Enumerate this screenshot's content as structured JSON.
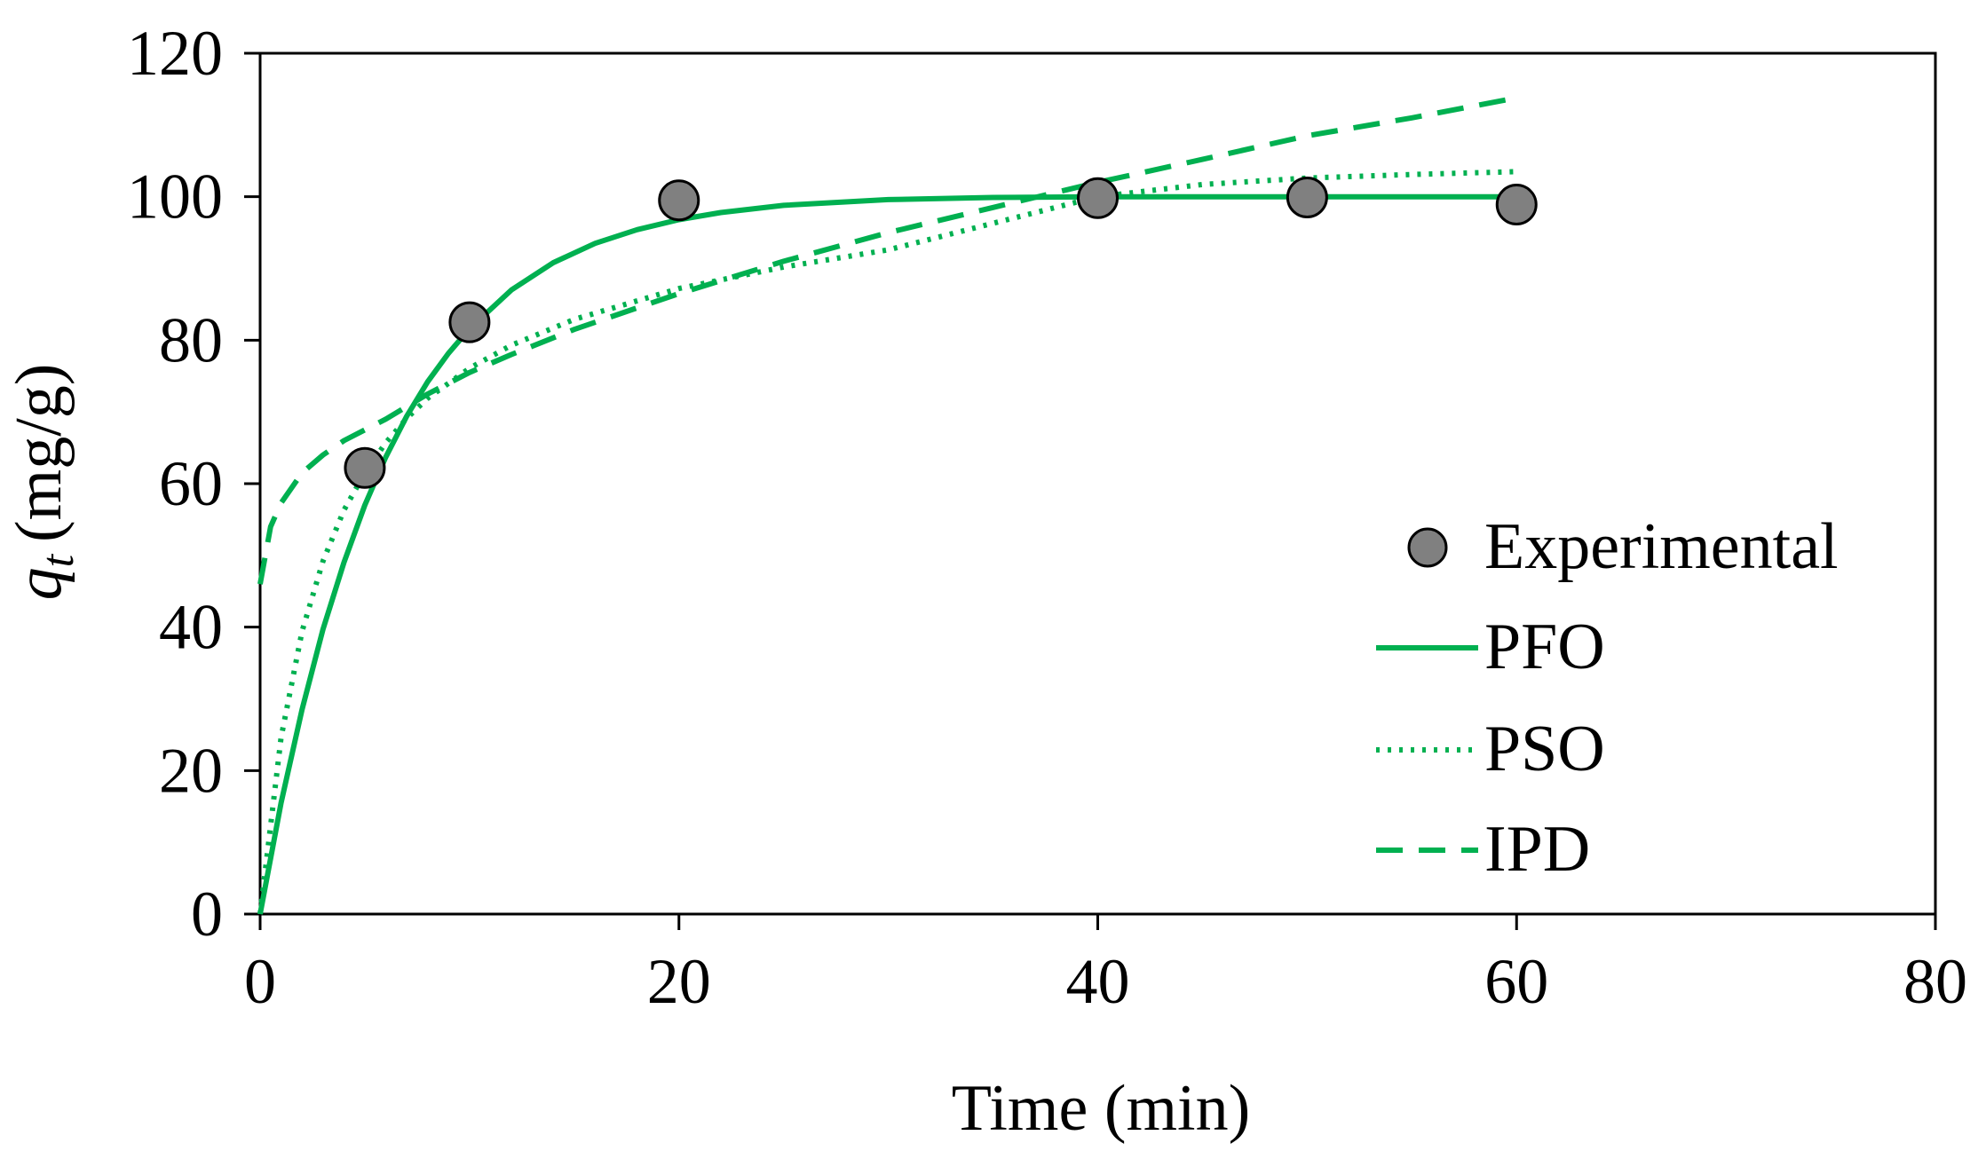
{
  "chart_data": {
    "type": "line",
    "title": "",
    "xlabel": "Time (min)",
    "ylabel": {
      "symbol": "q",
      "subscript": "t",
      "units": "(mg/g)"
    },
    "xlim": [
      0,
      80
    ],
    "ylim": [
      0,
      120
    ],
    "xticks": [
      0,
      20,
      40,
      60,
      80
    ],
    "yticks": [
      0,
      20,
      40,
      60,
      80,
      100,
      120
    ],
    "grid": false,
    "legend_position": "bottom-right",
    "colors": {
      "model": "#00b050",
      "marker_fill": "#808080",
      "marker_edge": "#000000",
      "axis": "#000000"
    },
    "series": [
      {
        "name": "Experimental",
        "kind": "scatter",
        "x": [
          5,
          10,
          20,
          40,
          50,
          60
        ],
        "y": [
          62.2,
          82.5,
          99.5,
          99.8,
          99.9,
          98.9
        ]
      },
      {
        "name": "PFO",
        "kind": "line",
        "style": "solid",
        "x": [
          0,
          1,
          2,
          3,
          4,
          5,
          6,
          7,
          8,
          9,
          10,
          12,
          14,
          16,
          18,
          20,
          22,
          25,
          30,
          35,
          40,
          45,
          50,
          55,
          60
        ],
        "y": [
          0,
          15.5,
          28.5,
          39.7,
          49.0,
          57.0,
          63.7,
          69.4,
          74.2,
          78.2,
          81.6,
          87.0,
          90.8,
          93.5,
          95.4,
          96.8,
          97.8,
          98.8,
          99.6,
          99.9,
          100,
          100,
          100,
          100,
          100
        ]
      },
      {
        "name": "PSO",
        "kind": "line",
        "style": "dotted",
        "x": [
          0,
          1,
          2,
          3,
          4,
          5,
          6,
          7,
          8,
          10,
          12,
          15,
          20,
          25,
          30,
          35,
          40,
          45,
          50,
          55,
          60
        ],
        "y": [
          0,
          24.6,
          39.4,
          49.2,
          56.3,
          61.5,
          65.7,
          69.1,
          71.9,
          76.1,
          79.3,
          82.9,
          87.2,
          90.2,
          92.6,
          96.3,
          100,
          101.7,
          102.6,
          103.1,
          103.5
        ]
      },
      {
        "name": "IPD",
        "kind": "line",
        "style": "dashed",
        "x": [
          0,
          0.5,
          1,
          2,
          3,
          4,
          5,
          6,
          8,
          10,
          12,
          15,
          20,
          25,
          30,
          35,
          40,
          45,
          50,
          55,
          59.5
        ],
        "y": [
          46.0,
          54.0,
          57.3,
          61.5,
          64.0,
          66.0,
          67.5,
          69.0,
          72.5,
          75.5,
          78.0,
          81.5,
          86.5,
          91.0,
          95.0,
          98.5,
          102.0,
          105.2,
          108.5,
          111.0,
          113.5
        ]
      }
    ]
  }
}
